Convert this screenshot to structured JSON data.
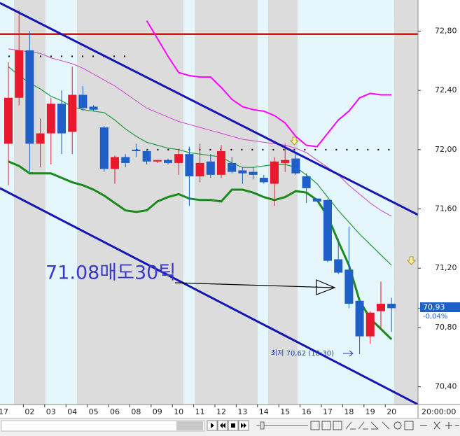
{
  "chart_data": {
    "type": "candlestick",
    "categories": [
      "17",
      null,
      "02",
      null,
      "03",
      null,
      "04",
      null,
      "05",
      null,
      "06",
      null,
      "08",
      null,
      "09",
      null,
      "10",
      null,
      "11",
      null,
      "12",
      null,
      "13",
      null,
      "14",
      null,
      "15",
      null,
      "16",
      null,
      "17",
      null,
      "18",
      null,
      "19",
      null,
      "20"
    ],
    "open": [
      72.04,
      72.35,
      72.67,
      72.04,
      72.11,
      72.31,
      72.12,
      72.37,
      72.29,
      72.15,
      71.87,
      71.95,
      72.0,
      71.99,
      71.92,
      71.93,
      71.91,
      71.97,
      71.82,
      71.92,
      71.83,
      71.91,
      71.86,
      71.85,
      71.81,
      71.77,
      71.91,
      71.94,
      71.82,
      71.67,
      71.66,
      71.26,
      71.19,
      70.98,
      70.74,
      70.91,
      70.96
    ],
    "high": [
      72.59,
      72.94,
      72.8,
      72.21,
      72.35,
      72.4,
      72.56,
      72.43,
      72.3,
      72.16,
      71.96,
      71.97,
      72.04,
      72.0,
      71.93,
      71.94,
      72.0,
      72.02,
      72.04,
      71.97,
      72.03,
      71.95,
      71.88,
      71.88,
      71.83,
      71.95,
      72.04,
      71.97,
      71.84,
      71.67,
      71.67,
      71.4,
      71.48,
      70.99,
      70.91,
      71.11,
      71.0
    ],
    "low": [
      71.76,
      72.3,
      71.85,
      71.88,
      71.9,
      71.97,
      71.97,
      72.26,
      72.26,
      71.85,
      71.77,
      71.88,
      71.95,
      71.9,
      71.91,
      71.9,
      71.83,
      71.62,
      71.78,
      71.81,
      71.81,
      71.84,
      71.77,
      71.8,
      71.77,
      71.62,
      71.85,
      71.83,
      71.64,
      71.65,
      71.24,
      71.16,
      70.93,
      70.62,
      70.69,
      70.79,
      70.77
    ],
    "close": [
      72.35,
      72.67,
      72.04,
      72.11,
      72.31,
      72.11,
      72.37,
      72.28,
      72.27,
      71.87,
      71.95,
      71.91,
      71.99,
      71.92,
      71.93,
      71.91,
      71.97,
      71.82,
      71.91,
      71.83,
      71.99,
      71.85,
      71.84,
      71.83,
      71.78,
      71.92,
      71.93,
      71.84,
      71.74,
      71.65,
      71.25,
      71.17,
      70.96,
      70.74,
      70.9,
      70.96,
      70.93
    ],
    "up_color": "#e8192c",
    "down_color": "#1f5fc8",
    "series": [
      {
        "color": "#1a8a1a",
        "width": 3,
        "values": [
          71.92,
          71.89,
          71.84,
          71.84,
          71.84,
          71.81,
          71.78,
          71.76,
          71.73,
          71.69,
          71.64,
          71.59,
          71.58,
          71.59,
          71.65,
          71.68,
          71.7,
          71.67,
          71.66,
          71.66,
          71.65,
          71.73,
          71.73,
          71.71,
          71.68,
          71.66,
          71.68,
          71.72,
          71.71,
          71.66,
          71.55,
          71.38,
          71.22,
          70.98,
          70.86,
          70.79,
          70.72
        ]
      },
      {
        "color": "#1a9a3a",
        "width": 1.2,
        "values": [
          72.56,
          72.5,
          72.45,
          72.41,
          72.36,
          72.33,
          72.29,
          72.27,
          72.26,
          72.25,
          72.2,
          72.14,
          72.09,
          72.05,
          72.03,
          72.01,
          72.0,
          71.98,
          71.97,
          71.96,
          71.95,
          71.91,
          71.88,
          71.88,
          71.89,
          71.9,
          71.9,
          71.88,
          71.83,
          71.77,
          71.68,
          71.59,
          71.51,
          71.43,
          71.36,
          71.29,
          71.22
        ]
      },
      {
        "color": "#d040d0",
        "width": 1,
        "values": [
          72.68,
          72.67,
          72.66,
          72.65,
          72.62,
          72.6,
          72.58,
          72.55,
          72.51,
          72.47,
          72.43,
          72.38,
          72.33,
          72.28,
          72.25,
          72.22,
          72.19,
          72.17,
          72.15,
          72.13,
          72.11,
          72.09,
          72.07,
          72.06,
          72.05,
          72.04,
          72.03,
          72.01,
          71.98,
          71.93,
          71.88,
          71.83,
          71.76,
          71.7,
          71.64,
          71.59,
          71.55
        ]
      },
      {
        "color": "#ff00ff",
        "width": 2,
        "values": [
          null,
          null,
          null,
          null,
          null,
          null,
          null,
          null,
          null,
          null,
          null,
          null,
          null,
          72.87,
          72.75,
          72.63,
          72.52,
          72.5,
          72.49,
          72.49,
          72.42,
          72.34,
          72.29,
          72.27,
          72.26,
          72.23,
          72.18,
          72.09,
          72.03,
          72.02,
          72.11,
          72.2,
          72.26,
          72.35,
          72.38,
          72.37,
          72.37
        ]
      }
    ],
    "trend_lines": [
      {
        "color": "#1515b5",
        "from": [
          -0.8,
          72.99
        ],
        "to": [
          38.5,
          71.56
        ]
      },
      {
        "color": "#1515b5",
        "from": [
          -0.8,
          71.74
        ],
        "to": [
          38.5,
          70.28
        ]
      }
    ],
    "hline": {
      "value": 72.78,
      "color": "#e01010"
    },
    "dotted_levels": [
      {
        "value": 72.63,
        "from": 0,
        "to": 11
      },
      {
        "value": 72.0,
        "from": 12,
        "to": 36
      }
    ],
    "ylim": [
      70.28,
      73.01
    ],
    "yticks": [
      {
        "value": 72.8,
        "label": "72,80"
      },
      {
        "value": 72.4,
        "label": "72,40"
      },
      {
        "value": 72.0,
        "label": "72,00"
      },
      {
        "value": 71.6,
        "label": "71,60"
      },
      {
        "value": 71.2,
        "label": "71,20"
      },
      {
        "value": 70.8,
        "label": "70,80"
      },
      {
        "value": 70.4,
        "label": "70,40"
      }
    ],
    "last_price": {
      "value": 70.93,
      "label": "70,93"
    },
    "change": "-0,04%",
    "low_note": "최저 70,62 (18:30)",
    "annotation": "71.08매도30틱",
    "time_label": "20:00:00"
  }
}
